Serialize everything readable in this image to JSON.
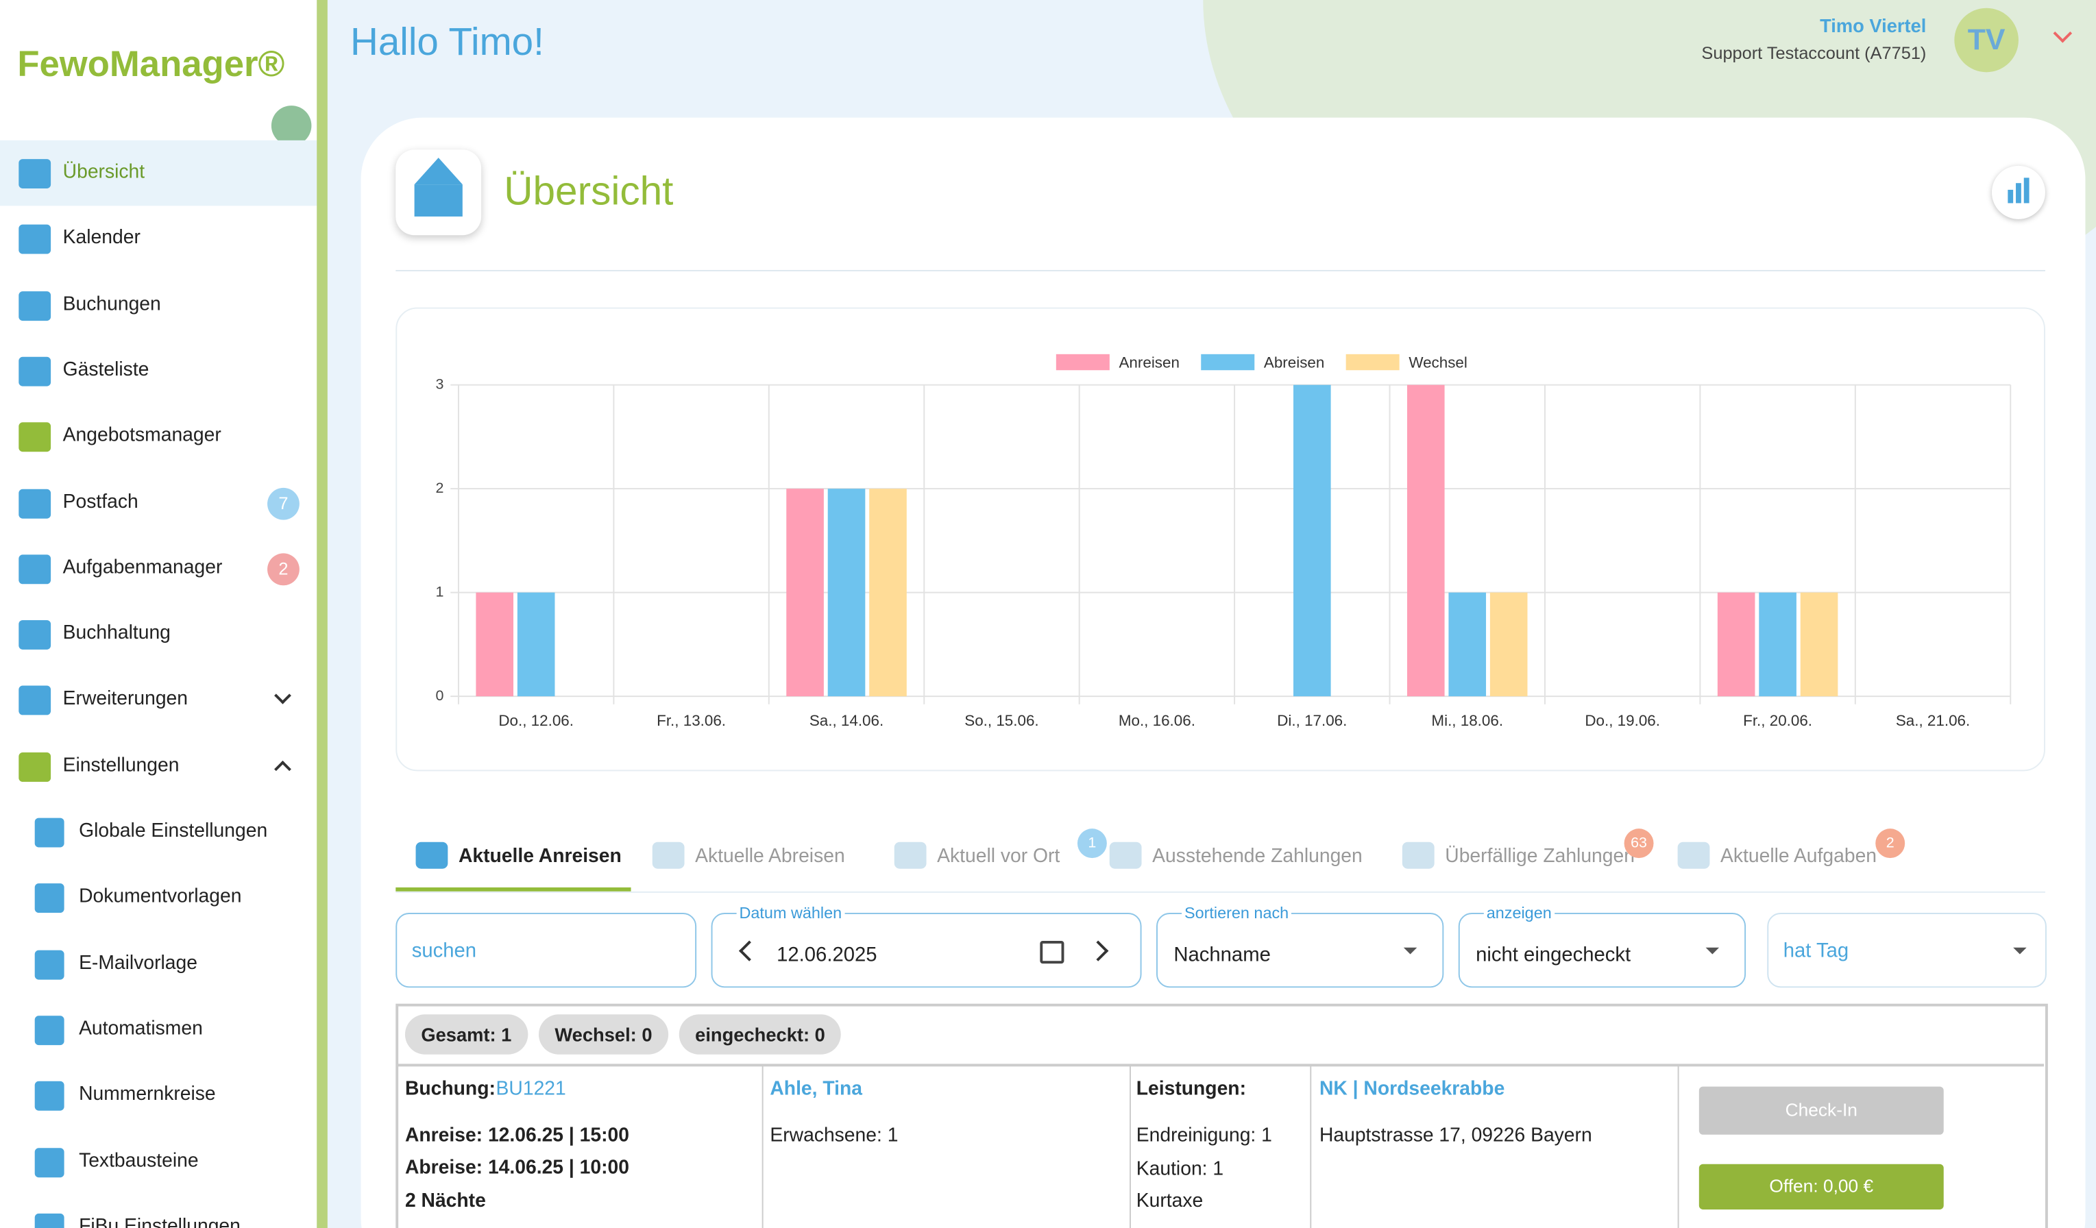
{
  "sidebar": {
    "logo": "FewoManager®",
    "items": [
      {
        "label": "Übersicht"
      },
      {
        "label": "Kalender"
      },
      {
        "label": "Buchungen"
      },
      {
        "label": "Gästeliste"
      },
      {
        "label": "Angebotsmanager"
      },
      {
        "label": "Postfach",
        "badge": 7
      },
      {
        "label": "Aufgabenmanager",
        "badge": 2
      },
      {
        "label": "Buchhaltung"
      },
      {
        "label": "Erweiterungen"
      },
      {
        "label": "Einstellungen"
      }
    ],
    "subitems": [
      "Globale Einstellungen",
      "Dokumentvorlagen",
      "E-Mailvorlage",
      "Automatismen",
      "Nummernkreise",
      "Textbausteine",
      "FiBu Einstellungen"
    ]
  },
  "header": {
    "greeting": "Hallo Timo!",
    "user_name": "Timo Viertel",
    "account": "Support Testaccount (A7751)",
    "initials": "TV"
  },
  "page_title": "Übersicht",
  "chart_data": {
    "type": "bar",
    "categories": [
      "Do., 12.06.",
      "Fr., 13.06.",
      "Sa., 14.06.",
      "So., 15.06.",
      "Mo., 16.06.",
      "Di., 17.06.",
      "Mi., 18.06.",
      "Do., 19.06.",
      "Fr., 20.06.",
      "Sa., 21.06."
    ],
    "series": [
      {
        "name": "Anreisen",
        "color": "#ff9eb5",
        "values": [
          1,
          0,
          2,
          0,
          0,
          0,
          3,
          0,
          1,
          0
        ]
      },
      {
        "name": "Abreisen",
        "color": "#6ec3ee",
        "values": [
          1,
          0,
          2,
          0,
          0,
          3,
          1,
          0,
          1,
          0
        ]
      },
      {
        "name": "Wechsel",
        "color": "#ffdc97",
        "values": [
          0,
          0,
          2,
          0,
          0,
          0,
          1,
          0,
          1,
          0
        ]
      }
    ],
    "ylim": [
      0,
      3
    ],
    "yticks": [
      0,
      1,
      2,
      3
    ],
    "grid": true,
    "legend": "top"
  },
  "tabs": [
    {
      "label": "Aktuelle Anreisen"
    },
    {
      "label": "Aktuelle Abreisen"
    },
    {
      "label": "Aktuell vor Ort",
      "badge": 1
    },
    {
      "label": "Ausstehende Zahlungen"
    },
    {
      "label": "Überfällige Zahlungen",
      "badge": 63
    },
    {
      "label": "Aktuelle Aufgaben",
      "badge": 2
    }
  ],
  "filters": {
    "search": "suchen",
    "date_label": "Datum wählen",
    "date": "12.06.2025",
    "sort_label": "Sortieren nach",
    "sort": "Nachname",
    "show_label": "anzeigen",
    "show": "nicht eingecheckt",
    "tag": "hat Tag"
  },
  "summary": [
    "Gesamt: 1",
    "Wechsel: 0",
    "eingecheckt: 0"
  ],
  "booking": {
    "booking_label": "Buchung:",
    "booking_id": "BU1221",
    "arrival": "Anreise: 12.06.25 | 15:00",
    "departure": "Abreise: 14.06.25 | 10:00",
    "nights": "2 Nächte",
    "guest": "Ahle, Tina",
    "adults": "Erwachsene: 1",
    "services_label": "Leistungen:",
    "services": [
      "Endreinigung: 1",
      "Kaution: 1",
      "Kurtaxe"
    ],
    "property": "NK | Nordseekrabbe",
    "address": "Hauptstrasse 17, 09226 Bayern",
    "checkin": "Check-In",
    "open": "Offen: 0,00 €"
  }
}
